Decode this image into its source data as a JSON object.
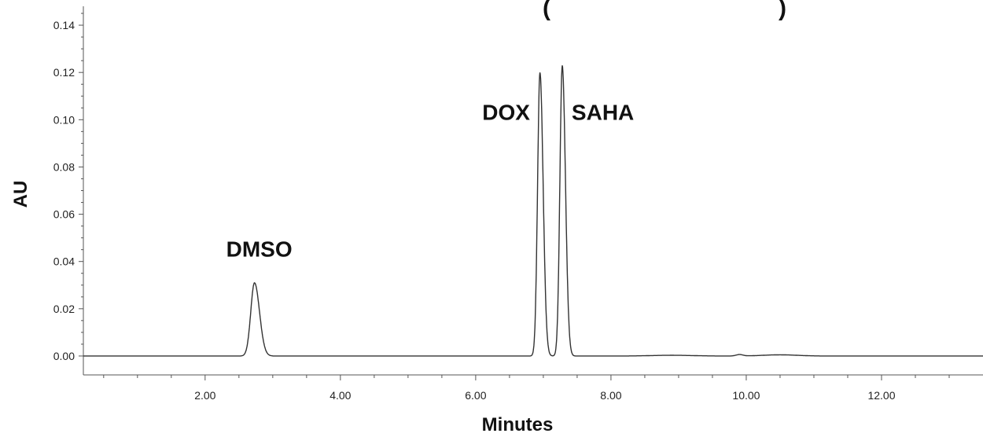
{
  "chart_data": {
    "type": "line",
    "title_fragments": [
      "(",
      ")"
    ],
    "xlabel": "Minutes",
    "ylabel": "AU",
    "xlim": [
      0.2,
      13.5
    ],
    "ylim": [
      -0.008,
      0.148
    ],
    "x_ticks": [
      "2.00",
      "4.00",
      "6.00",
      "8.00",
      "10.00",
      "12.00"
    ],
    "x_tick_values": [
      2,
      4,
      6,
      8,
      10,
      12
    ],
    "y_ticks": [
      "0.00",
      "0.02",
      "0.04",
      "0.06",
      "0.08",
      "0.10",
      "0.12",
      "0.14"
    ],
    "y_tick_values": [
      0,
      0.02,
      0.04,
      0.06,
      0.08,
      0.1,
      0.12,
      0.14
    ],
    "grid": false,
    "colors": {
      "line": "#333333",
      "axis": "#555555",
      "text": "#111111"
    },
    "annotations": [
      {
        "text": "DMSO",
        "x": 2.8,
        "y": 0.042
      },
      {
        "text": "DOX",
        "x": 6.45,
        "y": 0.1
      },
      {
        "text": "SAHA",
        "x": 7.88,
        "y": 0.1
      }
    ],
    "series": [
      {
        "peaks": [
          {
            "x": 2.73,
            "y": 0.031,
            "width": 0.055
          },
          {
            "x": 6.95,
            "y": 0.12,
            "width": 0.035
          },
          {
            "x": 7.28,
            "y": 0.123,
            "width": 0.035
          }
        ],
        "baseline": 0.0
      }
    ]
  }
}
